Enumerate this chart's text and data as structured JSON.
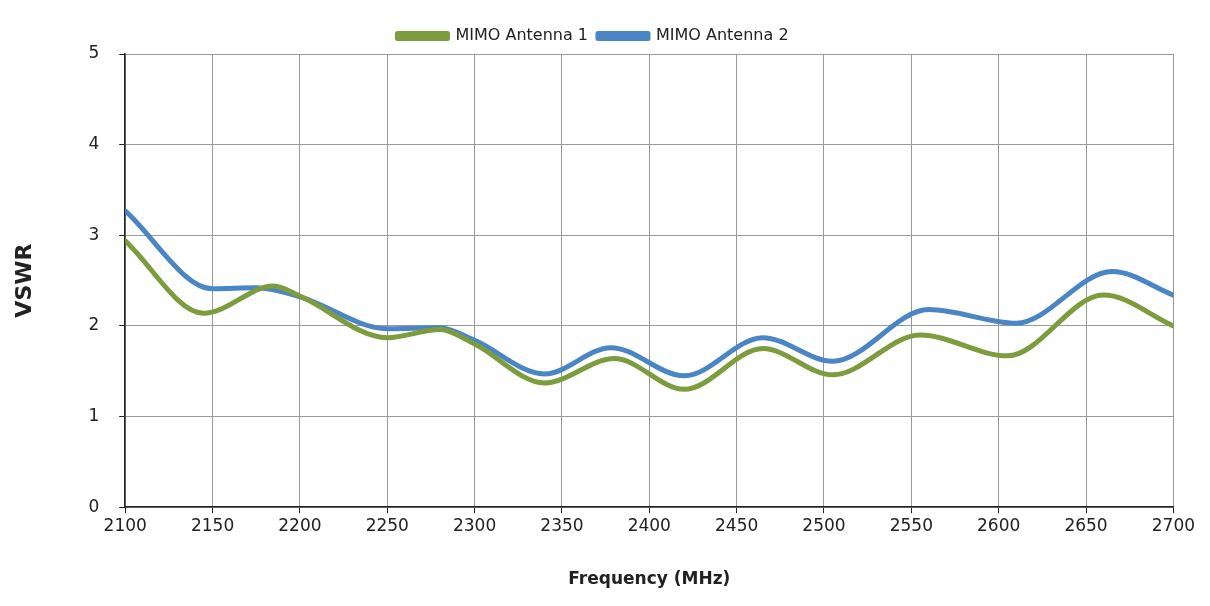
{
  "chart_data": {
    "type": "line",
    "xlabel": "Frequency (MHz)",
    "ylabel": "VSWR",
    "xlim": [
      2100,
      2700
    ],
    "xticks": [
      2100,
      2150,
      2200,
      2250,
      2300,
      2350,
      2400,
      2450,
      2500,
      2550,
      2600,
      2650,
      2700
    ],
    "ylim": [
      0,
      5
    ],
    "yticks": [
      0,
      1,
      2,
      3,
      4,
      5
    ],
    "grid": true,
    "legend": "top",
    "marker": "none",
    "line_style": "solid",
    "series": [
      {
        "name": "MIMO Antenna 1",
        "color": "#7c9c3e",
        "x": [
          2100,
          2145,
          2185,
          2200,
          2250,
          2280,
          2300,
          2340,
          2380,
          2420,
          2465,
          2505,
          2555,
          2605,
          2660,
          2700
        ],
        "values": [
          2.94,
          2.14,
          2.44,
          2.33,
          1.87,
          1.96,
          1.8,
          1.37,
          1.64,
          1.3,
          1.75,
          1.46,
          1.9,
          1.67,
          2.34,
          2.0
        ]
      },
      {
        "name": "MIMO Antenna 2",
        "color": "#4a86c5",
        "x": [
          2100,
          2150,
          2175,
          2200,
          2250,
          2280,
          2300,
          2340,
          2378,
          2420,
          2465,
          2505,
          2560,
          2610,
          2665,
          2700
        ],
        "values": [
          3.27,
          2.41,
          2.42,
          2.32,
          1.97,
          1.98,
          1.84,
          1.47,
          1.76,
          1.45,
          1.87,
          1.61,
          2.18,
          2.03,
          2.6,
          2.34
        ]
      }
    ]
  }
}
